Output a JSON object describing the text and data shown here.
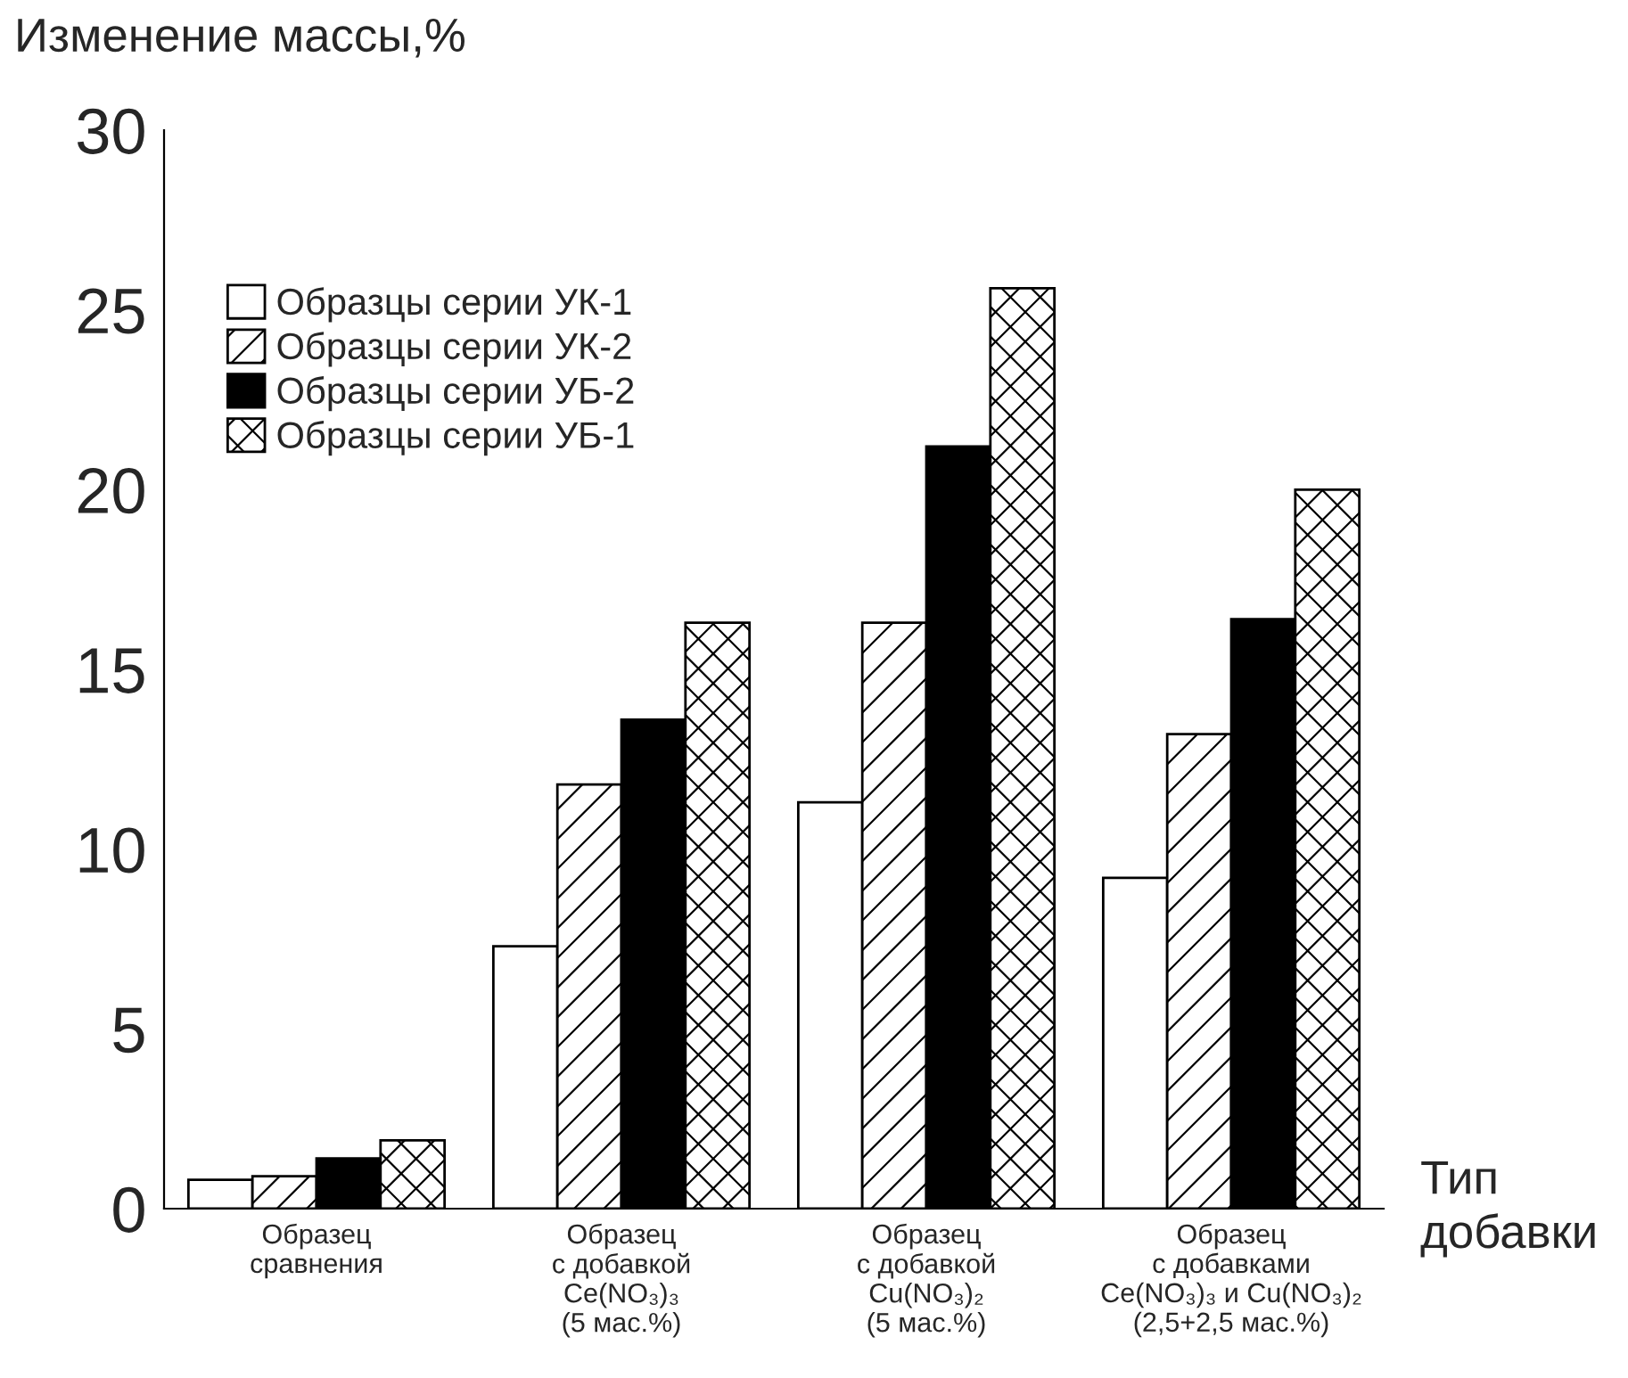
{
  "chart_data": {
    "type": "bar",
    "ylabel": "Изменение массы,%",
    "xlabel": "Тип\nдобавки",
    "categories": [
      "Образец\nсравнения",
      "Образец\nс добавкой\nCe(NO₃)₃\n(5 мас.%)",
      "Образец\nс добавкой\nCu(NO₃)₂\n(5 мас.%)",
      "Образец\nс добавками\nCe(NO₃)₃ и Cu(NO₃)₂\n(2,5+2,5 мас.%)"
    ],
    "series": [
      {
        "name": "Образцы серии УК-1",
        "color": "#ffffff",
        "values": [
          0.8,
          7.3,
          11.3,
          9.2
        ]
      },
      {
        "name": "Образцы серии УК-2",
        "values": [
          0.9,
          11.8,
          16.3,
          13.2
        ]
      },
      {
        "name": "Образцы серии УБ-2",
        "color": "#000000",
        "values": [
          1.4,
          13.6,
          21.2,
          16.4
        ]
      },
      {
        "name": "Образцы серии УБ-1",
        "values": [
          1.9,
          16.3,
          25.6,
          20.0
        ]
      }
    ],
    "ylim": [
      0,
      30
    ],
    "yticks": [
      0,
      5,
      10,
      15,
      20,
      25,
      30
    ],
    "grid": false,
    "legend": "top left"
  }
}
